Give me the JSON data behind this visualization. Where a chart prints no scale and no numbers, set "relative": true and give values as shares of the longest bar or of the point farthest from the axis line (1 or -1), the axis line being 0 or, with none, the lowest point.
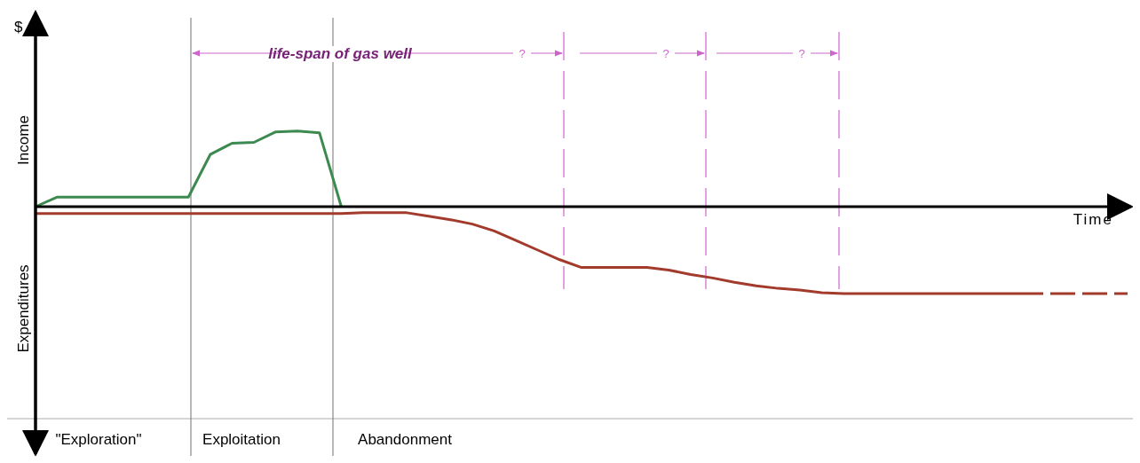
{
  "chart_data": {
    "type": "line",
    "relative": true,
    "xlabel": "Time",
    "categories": [
      null,
      null,
      null,
      null,
      null,
      null,
      null,
      null,
      null,
      null,
      null,
      null,
      null,
      null,
      null,
      null,
      null,
      null,
      null,
      null,
      null,
      null,
      null,
      null,
      null,
      null,
      null,
      null,
      null,
      null,
      null,
      null,
      null,
      null,
      null,
      null,
      null,
      null,
      null,
      null,
      null,
      null,
      null,
      null,
      null,
      null,
      null,
      null,
      null,
      null,
      null
    ],
    "series": [
      {
        "color": "#3c8a50",
        "values": [
          0,
          0.11,
          0.11,
          0.11,
          0.11,
          0.11,
          0.11,
          0.11,
          0.6,
          0.73,
          0.74,
          0.86,
          0.87,
          0.85,
          0,
          null,
          null,
          null,
          null,
          null,
          null,
          null,
          null,
          null,
          null,
          null,
          null,
          null,
          null,
          null,
          null,
          null,
          null,
          null,
          null,
          null,
          null,
          null,
          null,
          null,
          null,
          null,
          null,
          null,
          null,
          null,
          null,
          null,
          null,
          null,
          null
        ]
      },
      {
        "color": "#a23b2c",
        "values": [
          -0.08,
          -0.08,
          -0.08,
          -0.08,
          -0.08,
          -0.08,
          -0.08,
          -0.08,
          -0.08,
          -0.08,
          -0.08,
          -0.08,
          -0.08,
          -0.08,
          -0.08,
          -0.07,
          -0.07,
          -0.07,
          -0.11,
          -0.15,
          -0.2,
          -0.28,
          -0.39,
          -0.5,
          -0.61,
          -0.7,
          -0.7,
          -0.7,
          -0.7,
          -0.73,
          -0.78,
          -0.82,
          -0.87,
          -0.91,
          -0.94,
          -0.96,
          -0.99,
          -1,
          -1,
          -1,
          -1,
          -1,
          -1,
          -1,
          -1,
          -1,
          null,
          null,
          null,
          null,
          null
        ]
      },
      {
        "color": "#a23b2c",
        "line_style": "dashed",
        "values": [
          null,
          null,
          null,
          null,
          null,
          null,
          null,
          null,
          null,
          null,
          null,
          null,
          null,
          null,
          null,
          null,
          null,
          null,
          null,
          null,
          null,
          null,
          null,
          null,
          null,
          null,
          null,
          null,
          null,
          null,
          null,
          null,
          null,
          null,
          null,
          null,
          null,
          null,
          null,
          null,
          null,
          null,
          null,
          null,
          null,
          -1,
          -1,
          -1,
          -1,
          -1,
          -1
        ]
      }
    ],
    "annotations": [
      "$",
      "Income",
      "Expenditures",
      "\"Exploration\"",
      "Exploitation",
      "Abandonment",
      "life-span of gas well",
      "?",
      "?",
      "?"
    ]
  }
}
